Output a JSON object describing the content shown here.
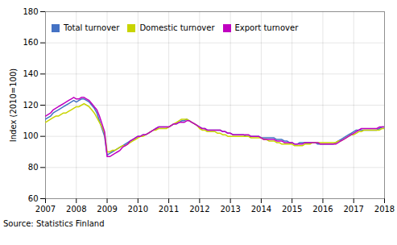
{
  "chart_data": {
    "type": "line",
    "ylabel": "Index (2010=100)",
    "source": "Source: Statistics Finland",
    "xlim": [
      2007.0,
      2018.0
    ],
    "ylim": [
      60,
      180
    ],
    "xticks": [
      2007,
      2008,
      2009,
      2010,
      2011,
      2012,
      2013,
      2014,
      2015,
      2016,
      2017,
      2018
    ],
    "yticks": [
      60,
      80,
      100,
      120,
      140,
      160,
      180
    ],
    "grid": true,
    "legend": "upper left",
    "x": [
      2007,
      2007.0833333333,
      2007.1666666667,
      2007.25,
      2007.3333333333,
      2007.4166666667,
      2007.5,
      2007.5833333333,
      2007.6666666667,
      2007.75,
      2007.8333333333,
      2007.9166666667,
      2008,
      2008.0833333333,
      2008.1666666667,
      2008.25,
      2008.3333333333,
      2008.4166666667,
      2008.5,
      2008.5833333333,
      2008.6666666667,
      2008.75,
      2008.8333333333,
      2008.9166666667,
      2009,
      2009.0833333333,
      2009.1666666667,
      2009.25,
      2009.3333333333,
      2009.4166666667,
      2009.5,
      2009.5833333333,
      2009.6666666667,
      2009.75,
      2009.8333333333,
      2009.9166666667,
      2010,
      2010.0833333333,
      2010.1666666667,
      2010.25,
      2010.3333333333,
      2010.4166666667,
      2010.5,
      2010.5833333333,
      2010.6666666667,
      2010.75,
      2010.8333333333,
      2010.9166666667,
      2011,
      2011.0833333333,
      2011.1666666667,
      2011.25,
      2011.3333333333,
      2011.4166666667,
      2011.5,
      2011.5833333333,
      2011.6666666667,
      2011.75,
      2011.8333333333,
      2011.9166666667,
      2012,
      2012.0833333333,
      2012.1666666667,
      2012.25,
      2012.3333333333,
      2012.4166666667,
      2012.5,
      2012.5833333333,
      2012.6666666667,
      2012.75,
      2012.8333333333,
      2012.9166666667,
      2013,
      2013.0833333333,
      2013.1666666667,
      2013.25,
      2013.3333333333,
      2013.4166666667,
      2013.5,
      2013.5833333333,
      2013.6666666667,
      2013.75,
      2013.8333333333,
      2013.9166666667,
      2014,
      2014.0833333333,
      2014.1666666667,
      2014.25,
      2014.3333333333,
      2014.4166666667,
      2014.5,
      2014.5833333333,
      2014.6666666667,
      2014.75,
      2014.8333333333,
      2014.9166666667,
      2015,
      2015.0833333333,
      2015.1666666667,
      2015.25,
      2015.3333333333,
      2015.4166666667,
      2015.5,
      2015.5833333333,
      2015.6666666667,
      2015.75,
      2015.8333333333,
      2015.9166666667,
      2016,
      2016.0833333333,
      2016.1666666667,
      2016.25,
      2016.3333333333,
      2016.4166666667,
      2016.5,
      2016.5833333333,
      2016.6666666667,
      2016.75,
      2016.8333333333,
      2016.9166666667,
      2017,
      2017.0833333333,
      2017.1666666667,
      2017.25,
      2017.3333333333,
      2017.4166666667,
      2017.5,
      2017.5833333333,
      2017.6666666667,
      2017.75,
      2017.8333333333,
      2017.9166666667,
      2018
    ],
    "series": [
      {
        "name": "Total turnover",
        "color": "#4472c4",
        "values": [
          111,
          112,
          113,
          115,
          116,
          117,
          118,
          119,
          120,
          121,
          122,
          123,
          122,
          123,
          124,
          124,
          123,
          122,
          120,
          118,
          115,
          110,
          105,
          100,
          88,
          89,
          90,
          91,
          92,
          93,
          94,
          95,
          96,
          97,
          98,
          99,
          100,
          100,
          101,
          101,
          102,
          103,
          104,
          105,
          106,
          106,
          106,
          106,
          106,
          107,
          108,
          108,
          109,
          110,
          110,
          111,
          110,
          109,
          108,
          107,
          106,
          105,
          105,
          104,
          104,
          104,
          104,
          104,
          104,
          103,
          103,
          102,
          102,
          101,
          101,
          101,
          101,
          101,
          100,
          100,
          100,
          100,
          100,
          100,
          99,
          99,
          99,
          99,
          99,
          99,
          98,
          98,
          98,
          97,
          97,
          96,
          96,
          95,
          95,
          96,
          96,
          96,
          96,
          96,
          96,
          96,
          95,
          95,
          95,
          95,
          95,
          95,
          95,
          96,
          97,
          98,
          99,
          100,
          101,
          102,
          103,
          104,
          104,
          104,
          104,
          104,
          104,
          104,
          104,
          104,
          105,
          106,
          106
        ]
      },
      {
        "name": "Domestic turnover",
        "color": "#c8d400",
        "values": [
          109,
          110,
          111,
          112,
          113,
          113,
          114,
          115,
          115,
          116,
          117,
          118,
          119,
          119,
          120,
          121,
          120,
          119,
          117,
          115,
          112,
          109,
          106,
          102,
          90,
          90,
          91,
          91,
          92,
          93,
          94,
          94,
          95,
          96,
          97,
          98,
          99,
          100,
          100,
          101,
          102,
          103,
          104,
          104,
          105,
          105,
          105,
          105,
          106,
          107,
          108,
          109,
          110,
          111,
          111,
          111,
          110,
          109,
          108,
          107,
          105,
          104,
          104,
          103,
          103,
          103,
          103,
          102,
          102,
          101,
          101,
          100,
          100,
          100,
          100,
          100,
          100,
          100,
          100,
          100,
          99,
          99,
          99,
          99,
          99,
          98,
          98,
          97,
          97,
          97,
          96,
          96,
          95,
          95,
          95,
          95,
          95,
          94,
          94,
          94,
          94,
          95,
          95,
          95,
          96,
          96,
          96,
          96,
          96,
          96,
          96,
          96,
          96,
          96,
          97,
          97,
          98,
          99,
          100,
          101,
          101,
          102,
          103,
          103,
          104,
          104,
          104,
          104,
          104,
          104,
          104,
          105,
          105
        ]
      },
      {
        "name": "Export turnover",
        "color": "#c000c0",
        "values": [
          113,
          114,
          115,
          117,
          118,
          119,
          120,
          121,
          122,
          123,
          124,
          125,
          124,
          124,
          125,
          125,
          124,
          123,
          121,
          119,
          117,
          113,
          108,
          103,
          87,
          87,
          88,
          89,
          90,
          91,
          93,
          94,
          95,
          97,
          98,
          99,
          100,
          100,
          101,
          101,
          102,
          103,
          104,
          105,
          106,
          106,
          106,
          106,
          106,
          107,
          108,
          108,
          109,
          109,
          109,
          110,
          110,
          109,
          108,
          107,
          106,
          105,
          105,
          104,
          104,
          104,
          104,
          104,
          104,
          103,
          103,
          102,
          102,
          101,
          101,
          101,
          101,
          101,
          101,
          101,
          100,
          100,
          100,
          100,
          99,
          98,
          98,
          98,
          98,
          98,
          97,
          97,
          97,
          96,
          96,
          96,
          96,
          95,
          95,
          95,
          95,
          96,
          96,
          96,
          96,
          96,
          96,
          95,
          95,
          95,
          95,
          95,
          95,
          95,
          96,
          97,
          98,
          99,
          100,
          101,
          102,
          103,
          104,
          105,
          105,
          105,
          105,
          105,
          105,
          105,
          106,
          106,
          106
        ]
      }
    ]
  }
}
